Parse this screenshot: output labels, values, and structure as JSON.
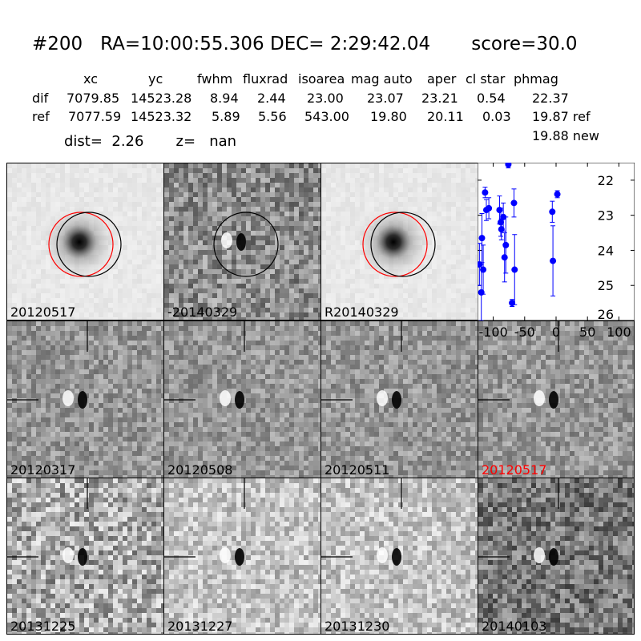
{
  "header": {
    "title": "#200   RA=10:00:55.306 DEC= 2:29:42.04       score=30.0",
    "columns": [
      "xc",
      "yc",
      "fwhm",
      "fluxrad",
      "isoarea",
      "mag auto",
      "aper",
      "cl star",
      "phmag"
    ],
    "rows": [
      {
        "label": "dif",
        "values": [
          "7079.85",
          "14523.28",
          "8.94",
          "2.44",
          "23.00",
          "23.07",
          "23.21",
          "0.54",
          "22.37"
        ]
      },
      {
        "label": "ref",
        "values": [
          "7077.59",
          "14523.32",
          "5.89",
          "5.56",
          "543.00",
          "19.80",
          "20.11",
          "0.03",
          "19.87 ref"
        ]
      }
    ],
    "extra_phmag": "19.88 new",
    "dist": "dist=  2.26       z=   nan"
  },
  "top_panels": [
    {
      "label": "20120517",
      "kind": "galaxy",
      "circles": [
        "red",
        "black"
      ]
    },
    {
      "label": "-20140329",
      "kind": "diff",
      "circles": [
        "black"
      ]
    },
    {
      "label": "R20140329",
      "kind": "galaxy",
      "circles": [
        "red",
        "black"
      ]
    }
  ],
  "grid_panels": [
    {
      "label": "20120317",
      "red": false
    },
    {
      "label": "20120508",
      "red": false
    },
    {
      "label": "20120511",
      "red": false
    },
    {
      "label": "20120517",
      "red": true
    },
    {
      "label": "20131225",
      "red": false
    },
    {
      "label": "20131227",
      "red": false
    },
    {
      "label": "20131230",
      "red": false
    },
    {
      "label": "20140103",
      "red": false
    }
  ],
  "chart_data": {
    "type": "scatter",
    "title": "",
    "xlabel": "",
    "ylabel": "",
    "xlim": [
      -125,
      125
    ],
    "ylim": [
      26,
      21.5
    ],
    "xticks": [
      "-100",
      "-50",
      "0",
      "50",
      "100"
    ],
    "xtick_values": [
      -100,
      -50,
      0,
      50,
      100
    ],
    "yticks": [
      "22",
      "23",
      "24",
      "25",
      "26"
    ],
    "ytick_values": [
      22,
      23,
      24,
      25,
      26
    ],
    "marker_color": "#0000ff",
    "points": [
      {
        "x": -122,
        "y": 24.4,
        "err": 0.6
      },
      {
        "x": -119,
        "y": 25.2,
        "err": 0.8
      },
      {
        "x": -118,
        "y": 23.65,
        "err": 0.7
      },
      {
        "x": -116,
        "y": 24.55,
        "err": 0.7
      },
      {
        "x": -113,
        "y": 22.35,
        "err": 0.15
      },
      {
        "x": -111,
        "y": 22.85,
        "err": 0.3
      },
      {
        "x": -107,
        "y": 22.8,
        "err": 0.3
      },
      {
        "x": -90,
        "y": 22.85,
        "err": 0.4
      },
      {
        "x": -88,
        "y": 23.2,
        "err": 0.4
      },
      {
        "x": -87,
        "y": 23.4,
        "err": 0.3
      },
      {
        "x": -84,
        "y": 23.05,
        "err": 0.4
      },
      {
        "x": -82,
        "y": 24.2,
        "err": 0.7
      },
      {
        "x": -80,
        "y": 23.85,
        "err": 0.8
      },
      {
        "x": -76,
        "y": 21.55,
        "err": 0.1
      },
      {
        "x": -70,
        "y": 25.5,
        "err": 0.1
      },
      {
        "x": -67,
        "y": 22.65,
        "err": 0.4
      },
      {
        "x": -66,
        "y": 24.55,
        "err": 1.0
      },
      {
        "x": -6,
        "y": 22.9,
        "err": 0.3
      },
      {
        "x": -5,
        "y": 24.3,
        "err": 1.0
      },
      {
        "x": 2,
        "y": 22.4,
        "err": 0.1
      }
    ]
  }
}
